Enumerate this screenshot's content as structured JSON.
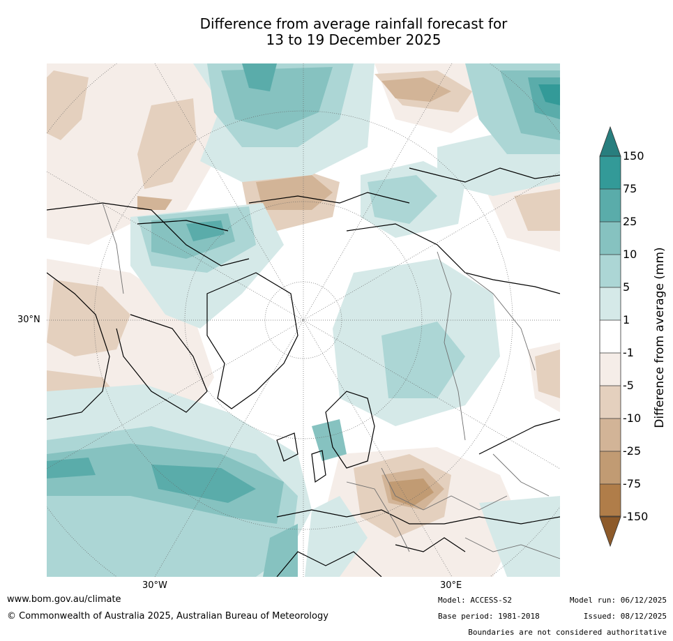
{
  "title": {
    "line1": "Difference from average rainfall forecast for",
    "line2": "13 to 19 December 2025"
  },
  "map": {
    "projection": "north-polar-stereographic",
    "axis_labels": {
      "left_lat": "30°N",
      "bottom_west": "30°W",
      "bottom_east": "30°E"
    }
  },
  "colorbar": {
    "title": "Difference from average (mm)",
    "ticks": [
      "150",
      "75",
      "25",
      "10",
      "5",
      "1",
      "-1",
      "-5",
      "-10",
      "-25",
      "-75",
      "-150"
    ],
    "colors": {
      "wet_extreme": "#287e7e",
      "wet_150": "#339a98",
      "wet_75": "#5aacaa",
      "wet_25": "#86c2c0",
      "wet_10": "#acd6d5",
      "wet_5": "#d5e9e8",
      "neutral": "#ffffff",
      "dry_1": "#f5ede8",
      "dry_5": "#e4d0be",
      "dry_10": "#d2b497",
      "dry_25": "#c19b73",
      "dry_75": "#b07d49",
      "dry_extreme": "#8d5a2a"
    }
  },
  "footer": {
    "url": "www.bom.gov.au/climate",
    "copyright": "© Commonwealth of Australia 2025, Australian Bureau of Meteorology",
    "model": "Model: ACCESS-S2",
    "base_period": "Base period: 1981-2018",
    "model_run": "Model run: 06/12/2025",
    "issued": "Issued: 08/12/2025",
    "boundaries_note": "Boundaries are not considered authoritative"
  }
}
